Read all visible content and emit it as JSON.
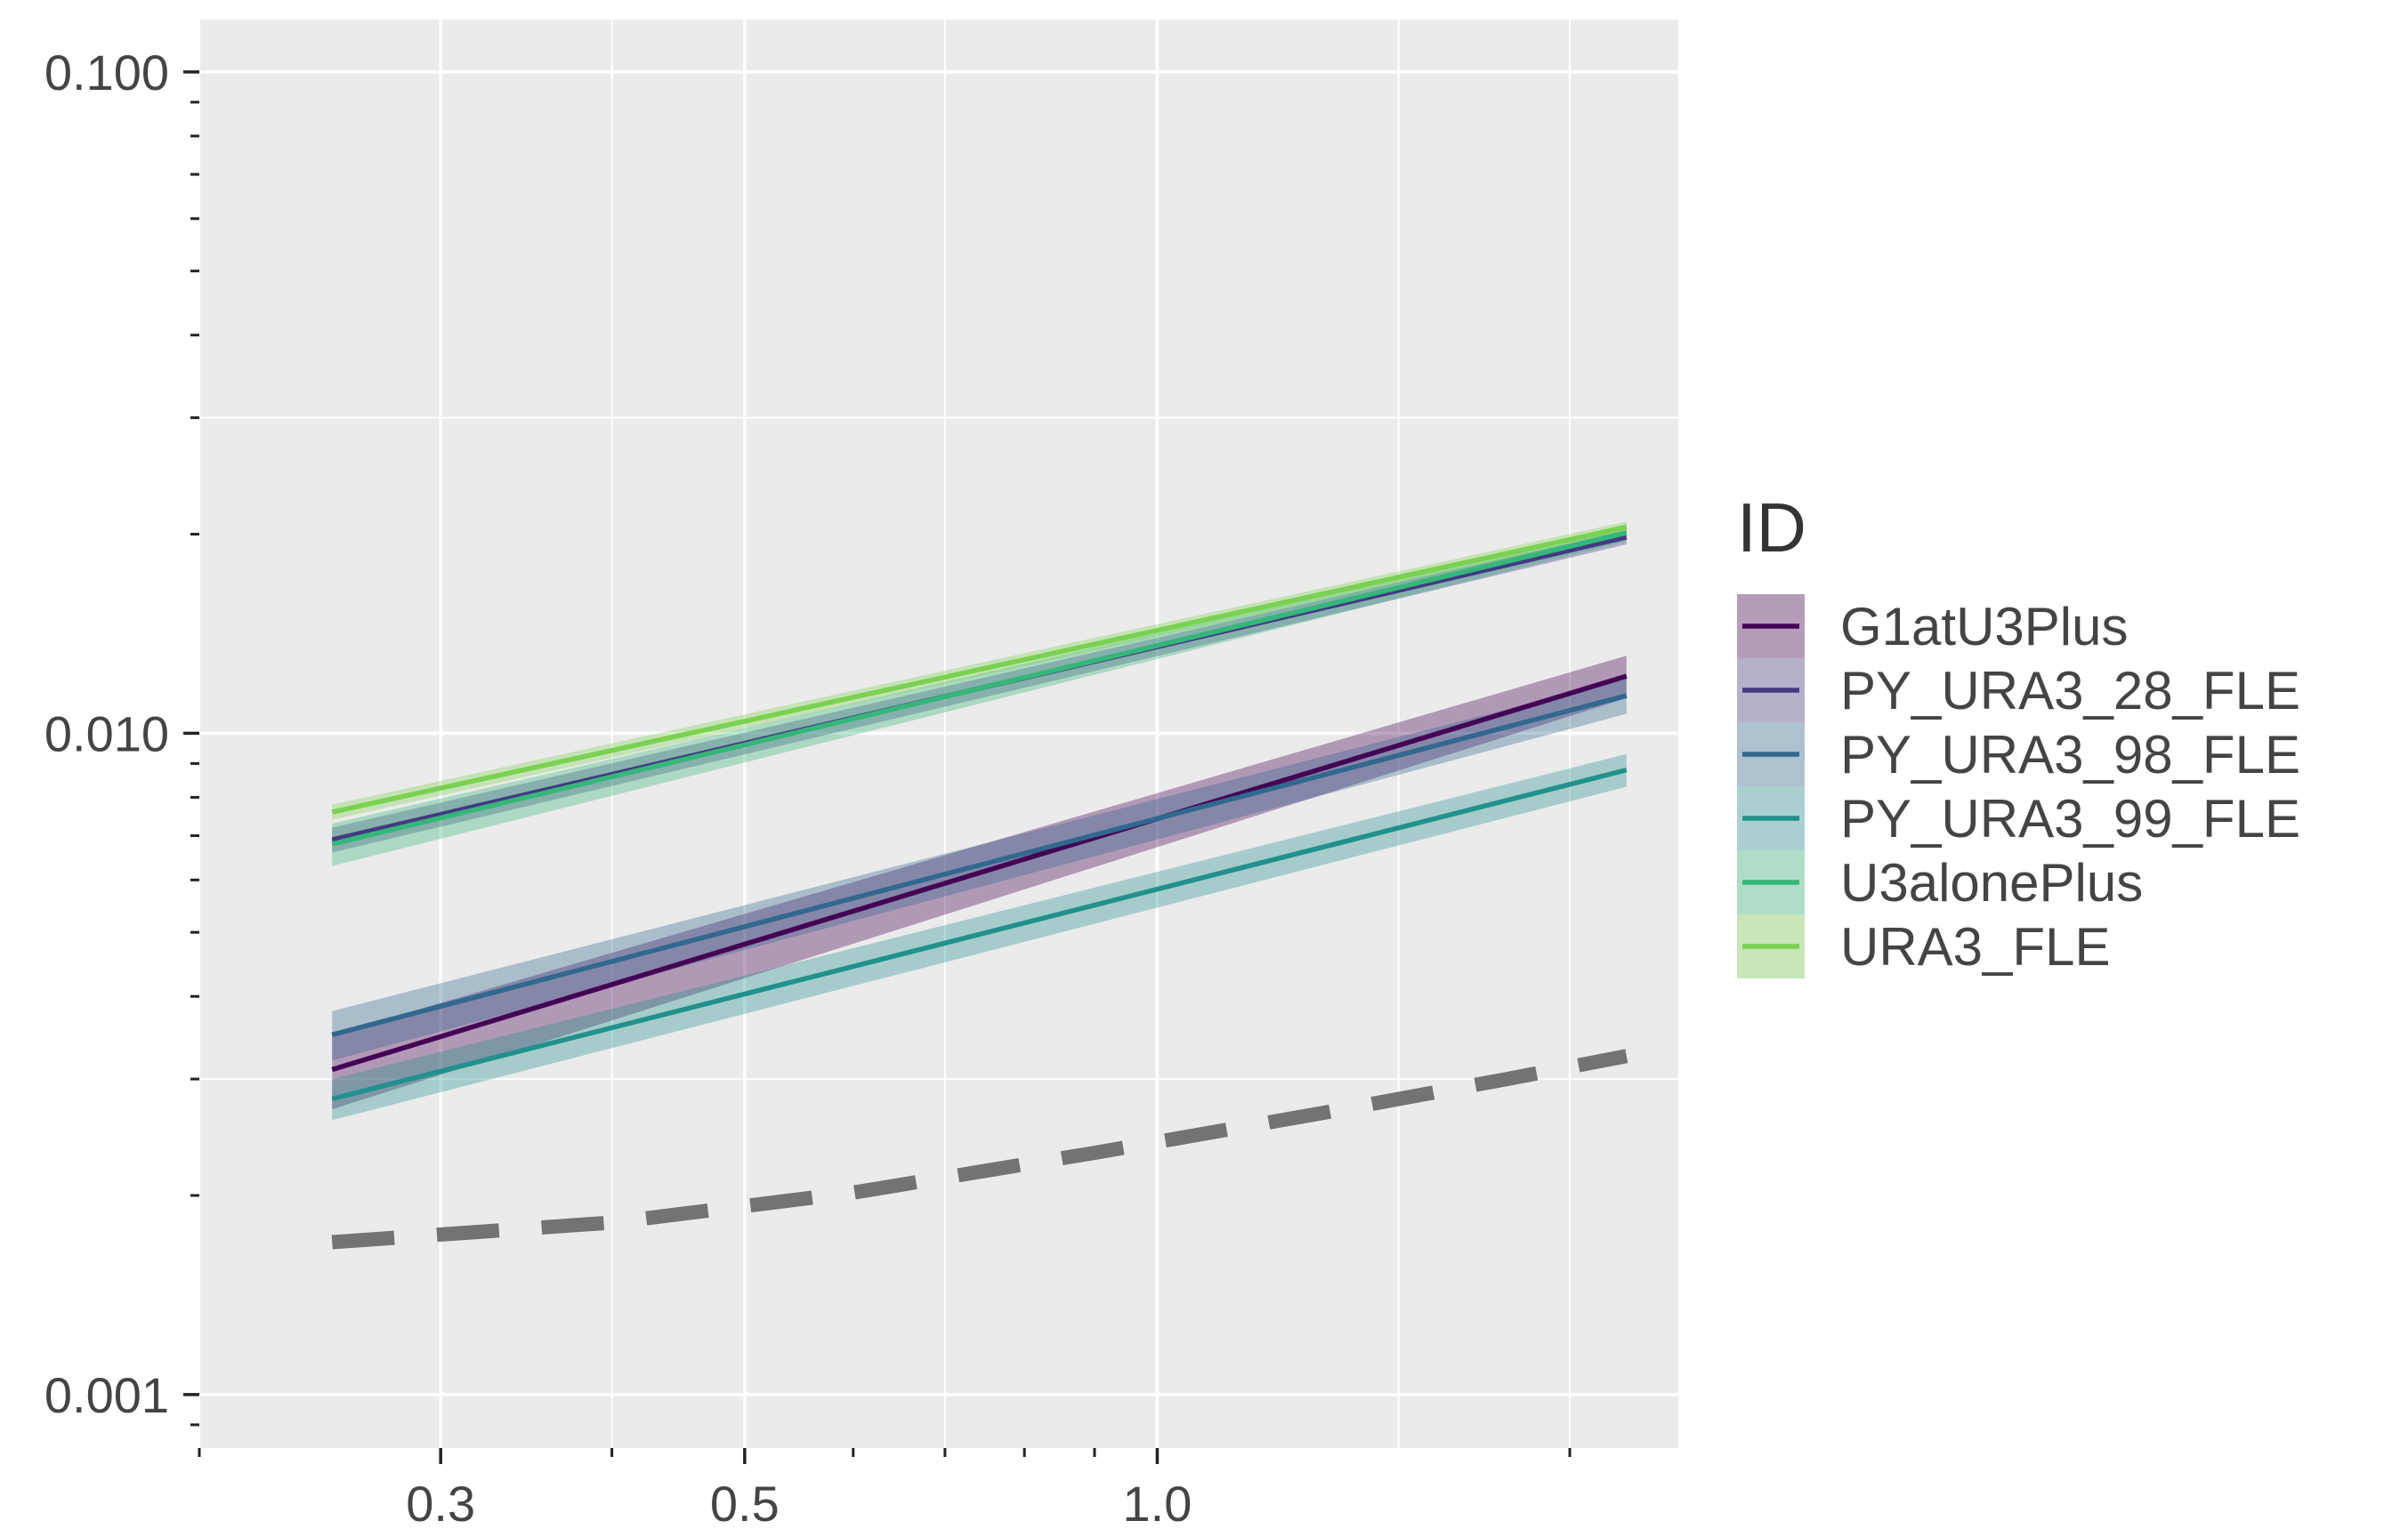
{
  "chart_data": {
    "type": "line",
    "title": "",
    "xlabel": "",
    "ylabel": "",
    "x_scale": "log",
    "y_scale": "log",
    "xlim": [
      0.2,
      2.4
    ],
    "ylim": [
      0.00083,
      0.12
    ],
    "x_ticks": [
      0.3,
      0.5,
      1.0
    ],
    "x_tick_labels": [
      "0.3",
      "0.5",
      "1.0"
    ],
    "y_ticks": [
      0.001,
      0.01,
      0.1
    ],
    "y_tick_labels": [
      "0.001",
      "0.010",
      "0.100"
    ],
    "grid": true,
    "legend": {
      "title": "ID",
      "position": "right"
    },
    "series": [
      {
        "name": "G1atU3Plus",
        "color": "#440154",
        "x": [
          0.25,
          2.2
        ],
        "y": [
          0.0031,
          0.0122
        ],
        "lower": [
          0.0027,
          0.0113
        ],
        "upper": [
          0.0035,
          0.0131
        ]
      },
      {
        "name": "PY_URA3_28_FLE",
        "color": "#443983",
        "x": [
          0.25,
          2.2
        ],
        "y": [
          0.0069,
          0.0198
        ],
        "lower": [
          0.0066,
          0.0193
        ],
        "upper": [
          0.0072,
          0.0203
        ]
      },
      {
        "name": "PY_URA3_98_FLE",
        "color": "#31688E",
        "x": [
          0.25,
          2.2
        ],
        "y": [
          0.0035,
          0.0114
        ],
        "lower": [
          0.0032,
          0.0107
        ],
        "upper": [
          0.0038,
          0.0121
        ]
      },
      {
        "name": "PY_URA3_99_FLE",
        "color": "#21918C",
        "x": [
          0.25,
          2.2
        ],
        "y": [
          0.0028,
          0.0088
        ],
        "lower": [
          0.0026,
          0.0083
        ],
        "upper": [
          0.003,
          0.0093
        ]
      },
      {
        "name": "U3alonePlus",
        "color": "#35B779",
        "x": [
          0.25,
          2.2
        ],
        "y": [
          0.0068,
          0.0201
        ],
        "lower": [
          0.0063,
          0.0195
        ],
        "upper": [
          0.0073,
          0.0207
        ]
      },
      {
        "name": "URA3_FLE",
        "color": "#7AD151",
        "x": [
          0.25,
          2.2
        ],
        "y": [
          0.0076,
          0.0205
        ],
        "lower": [
          0.0074,
          0.0201
        ],
        "upper": [
          0.0078,
          0.0209
        ]
      }
    ],
    "reference_line": {
      "style": "dashed",
      "color": "#737373",
      "x": [
        0.25,
        0.4,
        0.6,
        0.9,
        1.3,
        1.8,
        2.2
      ],
      "y": [
        0.0017,
        0.00182,
        0.00202,
        0.00232,
        0.00265,
        0.003,
        0.00325
      ]
    }
  }
}
